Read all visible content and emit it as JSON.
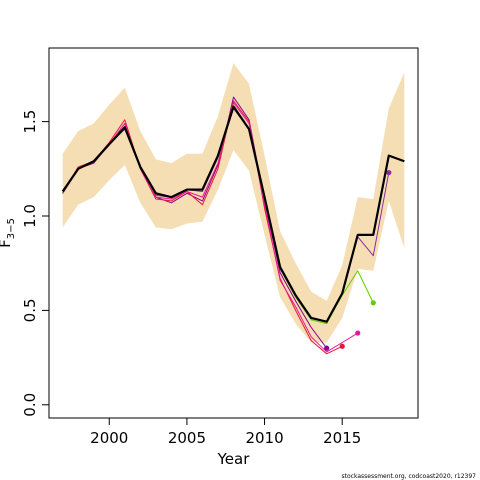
{
  "chart_data": {
    "type": "line",
    "x_label": "Year",
    "y_label": "F",
    "y_label_sub": "3−5",
    "footer": "stockassessment.org, codcoast2020, r12397",
    "x": [
      1997,
      1998,
      1999,
      2000,
      2001,
      2002,
      2003,
      2004,
      2005,
      2006,
      2007,
      2008,
      2009,
      2010,
      2011,
      2012,
      2013,
      2014,
      2015,
      2016,
      2017,
      2018,
      2019
    ],
    "xlim": [
      1996.12,
      2019.88
    ],
    "ylim": [
      -0.07,
      1.89
    ],
    "xticks": [
      2000,
      2005,
      2010,
      2015
    ],
    "yticks": [
      {
        "value": 0,
        "label": "0.0"
      },
      0.5,
      {
        "value": 1,
        "label": "1.0"
      },
      1.5
    ],
    "band": {
      "color": "#f5deb3",
      "upper": [
        1.33,
        1.45,
        1.49,
        1.59,
        1.68,
        1.45,
        1.3,
        1.28,
        1.33,
        1.33,
        1.53,
        1.81,
        1.7,
        1.32,
        0.92,
        0.75,
        0.6,
        0.55,
        0.74,
        1.1,
        1.09,
        1.57,
        1.76
      ],
      "lower": [
        0.94,
        1.06,
        1.1,
        1.19,
        1.27,
        1.07,
        0.94,
        0.93,
        0.96,
        0.97,
        1.14,
        1.35,
        1.24,
        0.9,
        0.57,
        0.43,
        0.33,
        0.33,
        0.46,
        0.72,
        0.71,
        1.08,
        0.83
      ]
    },
    "series": [
      {
        "color": "#000000",
        "width": 2.2,
        "values": [
          1.13,
          1.25,
          1.29,
          1.38,
          1.47,
          1.26,
          1.12,
          1.1,
          1.14,
          1.14,
          1.32,
          1.58,
          1.46,
          1.1,
          0.73,
          0.58,
          0.46,
          0.44,
          0.59,
          0.9,
          0.9,
          1.32,
          1.29
        ]
      },
      {
        "color": "#8b2c9e",
        "width": 1,
        "values": [
          1.12,
          1.25,
          1.29,
          1.38,
          1.46,
          1.26,
          1.11,
          1.1,
          1.14,
          1.13,
          1.31,
          1.57,
          1.46,
          1.1,
          0.72,
          0.58,
          0.46,
          0.44,
          0.59,
          0.89,
          0.79,
          1.23,
          null
        ]
      },
      {
        "color": "#66cc00",
        "width": 1,
        "values": [
          1.12,
          1.25,
          1.29,
          1.38,
          1.46,
          1.26,
          1.11,
          1.1,
          1.14,
          1.13,
          1.31,
          1.57,
          1.46,
          1.09,
          0.72,
          0.57,
          0.45,
          0.43,
          0.58,
          0.71,
          0.54,
          null,
          null
        ]
      },
      {
        "color": "#e6179b",
        "width": 1,
        "values": [
          1.12,
          1.25,
          1.29,
          1.38,
          1.49,
          1.25,
          1.1,
          1.09,
          1.13,
          1.1,
          1.28,
          1.6,
          1.49,
          1.06,
          0.66,
          0.52,
          0.36,
          0.28,
          0.33,
          0.38,
          null,
          null,
          null
        ]
      },
      {
        "color": "#e6193b",
        "width": 1,
        "values": [
          1.12,
          1.26,
          1.29,
          1.39,
          1.51,
          1.25,
          1.09,
          1.08,
          1.13,
          1.06,
          1.25,
          1.61,
          1.5,
          1.04,
          0.67,
          0.5,
          0.34,
          0.27,
          0.31,
          null,
          null,
          null,
          null
        ]
      },
      {
        "color": "#8b008b",
        "width": 1,
        "values": [
          1.12,
          1.25,
          1.28,
          1.38,
          1.49,
          1.26,
          1.1,
          1.07,
          1.12,
          1.08,
          1.27,
          1.63,
          1.51,
          1.08,
          0.7,
          0.55,
          0.41,
          0.3,
          null,
          null,
          null,
          null,
          null
        ]
      }
    ]
  }
}
